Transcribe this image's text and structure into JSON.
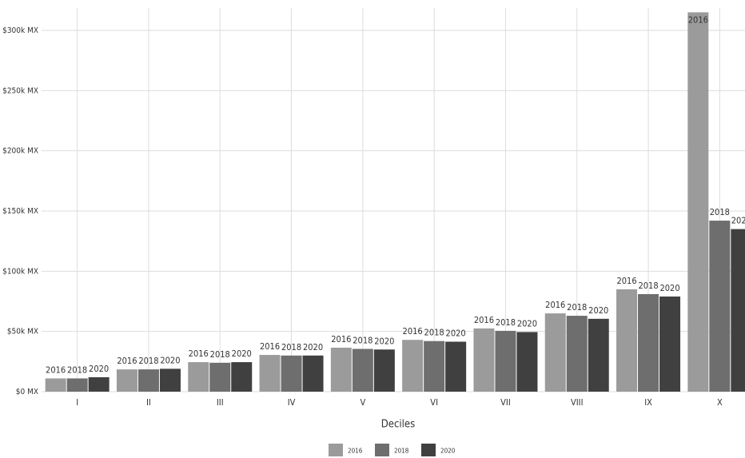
{
  "chart_data": {
    "type": "bar",
    "categories": [
      "I",
      "II",
      "III",
      "IV",
      "V",
      "VI",
      "VII",
      "VIII",
      "IX",
      "X"
    ],
    "series": [
      {
        "name": "2016",
        "color": "#9b9b9b",
        "values": [
          11000,
          18500,
          24500,
          30500,
          36500,
          43000,
          52500,
          65000,
          85000,
          315000
        ]
      },
      {
        "name": "2018",
        "color": "#6e6e6e",
        "values": [
          11000,
          18500,
          24000,
          30000,
          35500,
          42000,
          50500,
          63000,
          81000,
          142000
        ]
      },
      {
        "name": "2020",
        "color": "#404040",
        "values": [
          12000,
          19000,
          24500,
          30000,
          35000,
          41500,
          49500,
          60500,
          79000,
          135000
        ]
      }
    ],
    "x_label": "Deciles",
    "ylim": [
      0,
      300000
    ],
    "yticks": [
      {
        "value": 0,
        "label": "$0 MX"
      },
      {
        "value": 50000,
        "label": "$50k MX"
      },
      {
        "value": 100000,
        "label": "$100k MX"
      },
      {
        "value": 150000,
        "label": "$150k MX"
      },
      {
        "value": 200000,
        "label": "$200k MX"
      },
      {
        "value": 250000,
        "label": "$250k MX"
      },
      {
        "value": 300000,
        "label": "$300k MX"
      }
    ],
    "grid": true
  }
}
